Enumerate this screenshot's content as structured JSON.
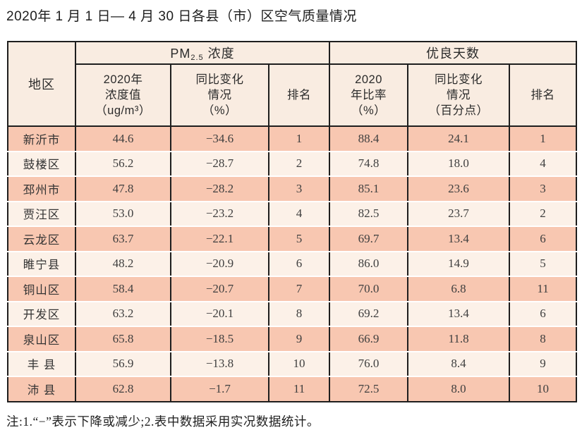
{
  "title": "2020年 1 月 1 日— 4 月 30 日各县（市）区空气质量情况",
  "footnote": "注:1.“−”表示下降或减少;2.表中数据采用实况数据统计。",
  "table": {
    "header": {
      "region": "地区",
      "pm_group": {
        "prefix": "PM",
        "sub": "2.5",
        "suffix": " 浓度"
      },
      "good_days_group": "优良天数",
      "pm_value": "2020年\n浓度值\n（ug/m³）",
      "pm_change": "同比变化\n情况\n（%）",
      "pm_rank": "排名",
      "good_rate": "2020\n年比率\n（%）",
      "good_change": "同比变化\n情况\n（百分点）",
      "good_rank": "排名"
    },
    "rows": [
      {
        "region": "新沂市",
        "pm_value": "44.6",
        "pm_change": "−34.6",
        "pm_rank": "1",
        "good_rate": "88.4",
        "good_change": "24.1",
        "good_rank": "1"
      },
      {
        "region": "鼓楼区",
        "pm_value": "56.2",
        "pm_change": "−28.7",
        "pm_rank": "2",
        "good_rate": "74.8",
        "good_change": "18.0",
        "good_rank": "4"
      },
      {
        "region": "邳州市",
        "pm_value": "47.8",
        "pm_change": "−28.2",
        "pm_rank": "3",
        "good_rate": "85.1",
        "good_change": "23.6",
        "good_rank": "3"
      },
      {
        "region": "贾汪区",
        "pm_value": "53.0",
        "pm_change": "−23.2",
        "pm_rank": "4",
        "good_rate": "82.5",
        "good_change": "23.7",
        "good_rank": "2"
      },
      {
        "region": "云龙区",
        "pm_value": "63.7",
        "pm_change": "−22.1",
        "pm_rank": "5",
        "good_rate": "69.7",
        "good_change": "13.4",
        "good_rank": "6"
      },
      {
        "region": "睢宁县",
        "pm_value": "48.2",
        "pm_change": "−20.9",
        "pm_rank": "6",
        "good_rate": "86.0",
        "good_change": "14.9",
        "good_rank": "5"
      },
      {
        "region": "铜山区",
        "pm_value": "58.4",
        "pm_change": "−20.7",
        "pm_rank": "7",
        "good_rate": "70.0",
        "good_change": "6.8",
        "good_rank": "11"
      },
      {
        "region": "开发区",
        "pm_value": "63.2",
        "pm_change": "−20.1",
        "pm_rank": "8",
        "good_rate": "69.2",
        "good_change": "13.4",
        "good_rank": "6"
      },
      {
        "region": "泉山区",
        "pm_value": "65.8",
        "pm_change": "−18.5",
        "pm_rank": "9",
        "good_rate": "66.9",
        "good_change": "11.8",
        "good_rank": "8"
      },
      {
        "region": "丰 县",
        "pm_value": "56.9",
        "pm_change": "−13.8",
        "pm_rank": "10",
        "good_rate": "76.0",
        "good_change": "8.4",
        "good_rank": "9"
      },
      {
        "region": "沛 县",
        "pm_value": "62.8",
        "pm_change": "−1.7",
        "pm_rank": "11",
        "good_rate": "72.5",
        "good_change": "8.0",
        "good_rank": "10"
      }
    ],
    "colors": {
      "row_salmon": "#f8c7b1",
      "row_cream": "#fcf1e8",
      "header_bg": "#f9ece1",
      "border": "#1e1e1e"
    }
  }
}
